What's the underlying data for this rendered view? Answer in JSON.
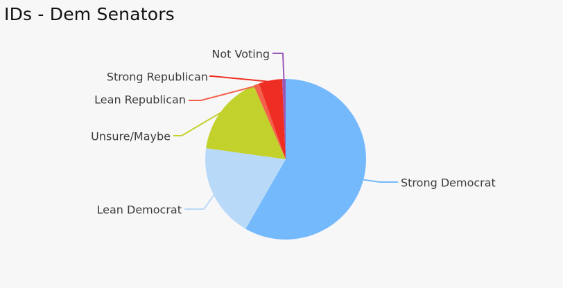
{
  "chart_data": {
    "type": "pie",
    "title": "IDs - Dem Senators",
    "slices": [
      {
        "label": "Strong Democrat",
        "value": 58.3,
        "color": "#74b9fc"
      },
      {
        "label": "Lean Democrat",
        "value": 18.9,
        "color": "#b9d9f8"
      },
      {
        "label": "Unsure/Maybe",
        "value": 16.3,
        "color": "#c3d12c"
      },
      {
        "label": "Lean Republican",
        "value": 1.1,
        "color": "#f4614a"
      },
      {
        "label": "Strong Republican",
        "value": 4.7,
        "color": "#ef2e23"
      },
      {
        "label": "Not Voting",
        "value": 0.7,
        "color": "#9b59b6"
      }
    ]
  }
}
